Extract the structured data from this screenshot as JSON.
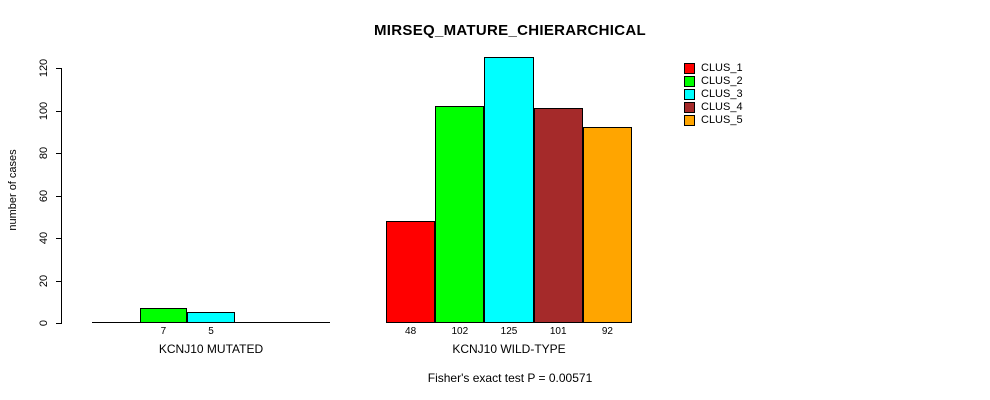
{
  "chart_data": {
    "type": "bar",
    "title": "MIRSEQ_MATURE_CHIERARCHICAL",
    "ylabel": "number of cases",
    "xlabel": "",
    "ylim": [
      0,
      120
    ],
    "yticks": [
      0,
      20,
      40,
      60,
      80,
      100,
      120
    ],
    "grid": false,
    "legend_position": "top-right",
    "legend": [
      {
        "label": "CLUS_1",
        "color": "#FF0000"
      },
      {
        "label": "CLUS_2",
        "color": "#00FF00"
      },
      {
        "label": "CLUS_3",
        "color": "#00FFFF"
      },
      {
        "label": "CLUS_4",
        "color": "#A52A2A"
      },
      {
        "label": "CLUS_5",
        "color": "#FFA500"
      }
    ],
    "groups": [
      {
        "label": "KCNJ10 MUTATED",
        "values": [
          0,
          7,
          5,
          0,
          0
        ],
        "value_labels": [
          "",
          "7",
          "5",
          "",
          ""
        ]
      },
      {
        "label": "KCNJ10 WILD-TYPE",
        "values": [
          48,
          102,
          125,
          101,
          92
        ],
        "value_labels": [
          "48",
          "102",
          "125",
          "101",
          "92"
        ]
      }
    ],
    "annotation": "Fisher's exact test P = 0.00571"
  },
  "colors": {
    "background": "#FFFFFF",
    "axis": "#000000",
    "bar_border": "#000000",
    "text": "#000000"
  }
}
